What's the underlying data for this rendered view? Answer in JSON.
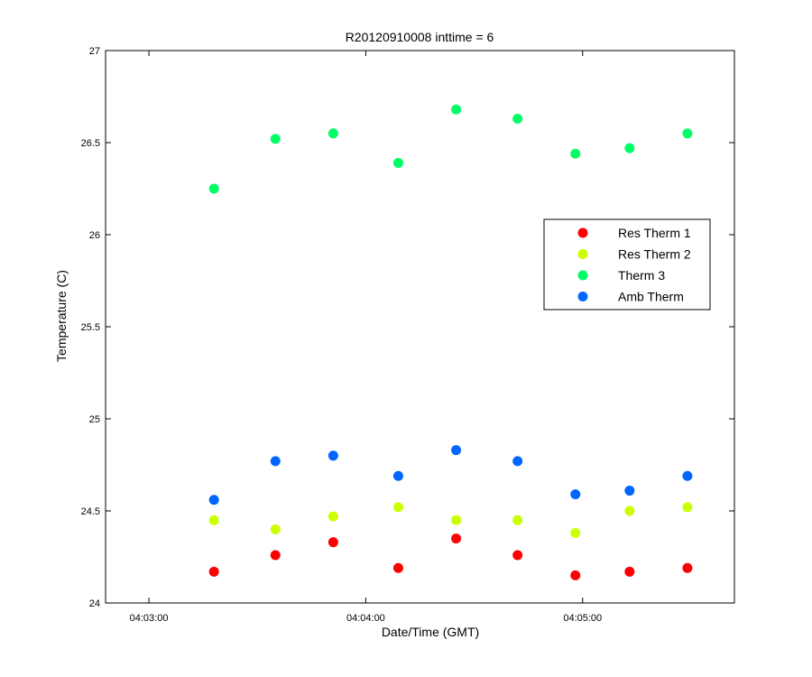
{
  "chart_data": {
    "type": "scatter",
    "title": "R20120910008 inttime = 6",
    "xlabel": "Date/Time (GMT)",
    "ylabel": "Temperature (C)",
    "xlim": [
      "04:02:48",
      "04:05:42"
    ],
    "ylim": [
      24,
      27
    ],
    "x_ticks": [
      "04:03:00",
      "04:04:00",
      "04:05:00"
    ],
    "y_ticks": [
      24,
      24.5,
      25,
      25.5,
      26,
      26.5,
      27
    ],
    "y_tick_labels": [
      "24",
      "24.5",
      "25",
      "25.5",
      "26",
      "26.5",
      "27"
    ],
    "grid": false,
    "legend_position": "right",
    "x": [
      "04:03:18",
      "04:03:35",
      "04:03:51",
      "04:04:09",
      "04:04:25",
      "04:04:42",
      "04:04:58",
      "04:05:13",
      "04:05:29"
    ],
    "series": [
      {
        "name": "Res Therm 1",
        "color": "#ff0000",
        "values": [
          24.17,
          24.26,
          24.33,
          24.19,
          24.35,
          24.26,
          24.15,
          24.17,
          24.19
        ]
      },
      {
        "name": "Res Therm 2",
        "color": "#ccff00",
        "values": [
          24.45,
          24.4,
          24.47,
          24.52,
          24.45,
          24.45,
          24.38,
          24.5,
          24.52
        ]
      },
      {
        "name": "Therm 3",
        "color": "#00ff66",
        "values": [
          26.25,
          26.52,
          26.55,
          26.39,
          26.68,
          26.63,
          26.44,
          26.47,
          26.55
        ]
      },
      {
        "name": "Amb Therm",
        "color": "#0066ff",
        "values": [
          24.56,
          24.77,
          24.8,
          24.69,
          24.83,
          24.77,
          24.59,
          24.61,
          24.69
        ]
      }
    ]
  }
}
